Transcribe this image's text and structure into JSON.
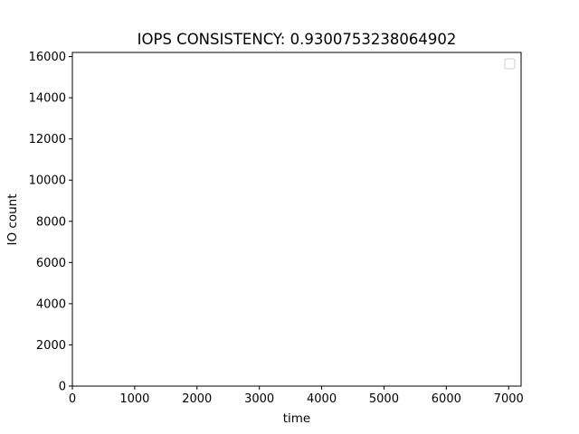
{
  "chart_data": {
    "type": "line",
    "title": "IOPS CONSISTENCY: 0.9300753238064902",
    "xlabel": "time",
    "ylabel": "IO count",
    "xlim": [
      0,
      7200
    ],
    "ylim": [
      0,
      16200
    ],
    "x_ticks": [
      0,
      1000,
      2000,
      3000,
      4000,
      5000,
      6000,
      7000
    ],
    "y_ticks": [
      0,
      2000,
      4000,
      6000,
      8000,
      10000,
      12000,
      14000,
      16000
    ],
    "grid": false,
    "legend_position": "upper-right",
    "legend_entries": [],
    "series": [],
    "colors": {
      "axes": "#000000",
      "background": "#ffffff",
      "legend_border": "#cccccc"
    }
  }
}
